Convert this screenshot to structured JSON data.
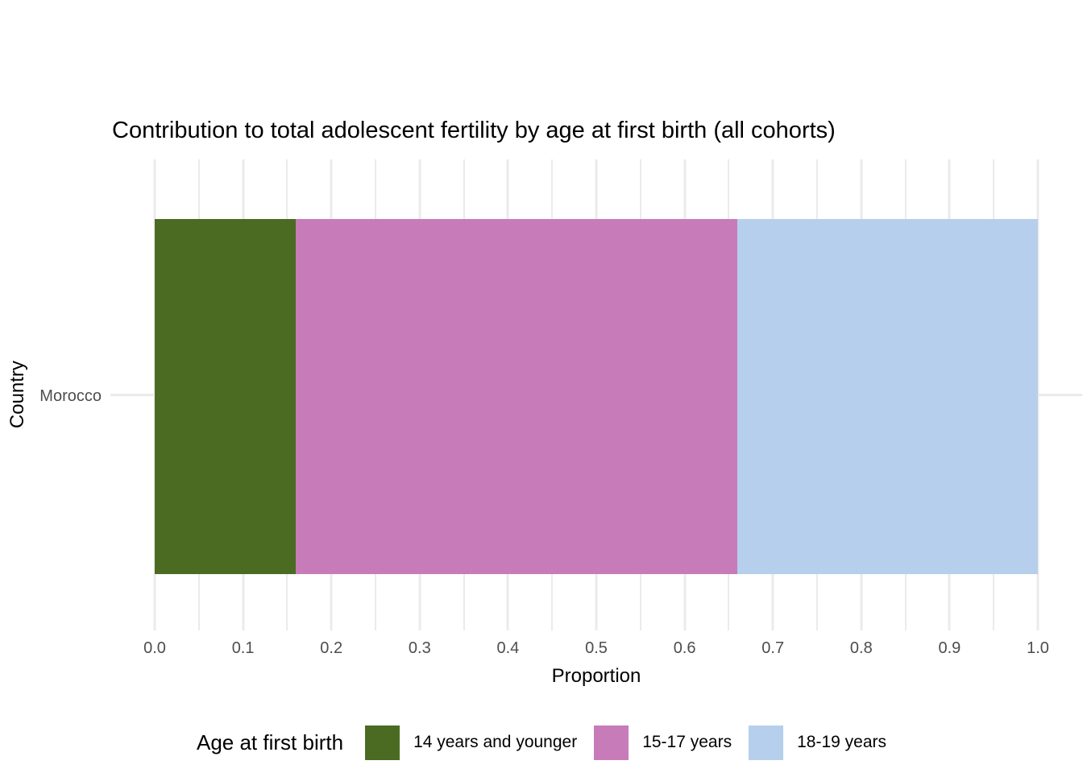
{
  "title": "Contribution to total adolescent fertility by age at first birth (all cohorts)",
  "axes": {
    "x": {
      "label": "Proportion",
      "ticks": [
        "0.0",
        "0.1",
        "0.2",
        "0.3",
        "0.4",
        "0.5",
        "0.6",
        "0.7",
        "0.8",
        "0.9",
        "1.0"
      ]
    },
    "y": {
      "label": "Country",
      "categories": [
        "Morocco"
      ]
    }
  },
  "legend": {
    "title": "Age at first birth"
  },
  "colors": {
    "background": "#FFFFFF",
    "gridline": "#EBEBEB",
    "axis_text": "#4D4D4D",
    "title_text": "#000000",
    "green": "#4C6B22",
    "pink": "#C77CB9",
    "blue": "#B6CFEC"
  },
  "chart_data": {
    "type": "bar",
    "subtype": "stacked-horizontal",
    "title": "Contribution to total adolescent fertility by age at first birth (all cohorts)",
    "xlabel": "Proportion",
    "ylabel": "Country",
    "xlim": [
      0,
      1
    ],
    "x_major_ticks": [
      0,
      0.1,
      0.2,
      0.3,
      0.4,
      0.5,
      0.6,
      0.7,
      0.8,
      0.9,
      1.0
    ],
    "x_minor_ticks": [
      0.05,
      0.15,
      0.25,
      0.35,
      0.45,
      0.55,
      0.65,
      0.75,
      0.85,
      0.95
    ],
    "grid": "vertical major and minor gridlines, one horizontal major gridline per category, white background",
    "legend_position": "bottom",
    "legend_title": "Age at first birth",
    "categories": [
      "Morocco"
    ],
    "series": [
      {
        "name": "14 years and younger",
        "color": "#4C6B22",
        "values": [
          0.16
        ]
      },
      {
        "name": "15-17 years",
        "color": "#C77CB9",
        "values": [
          0.5
        ]
      },
      {
        "name": "18-19 years",
        "color": "#B6CFEC",
        "values": [
          0.34
        ]
      }
    ]
  }
}
